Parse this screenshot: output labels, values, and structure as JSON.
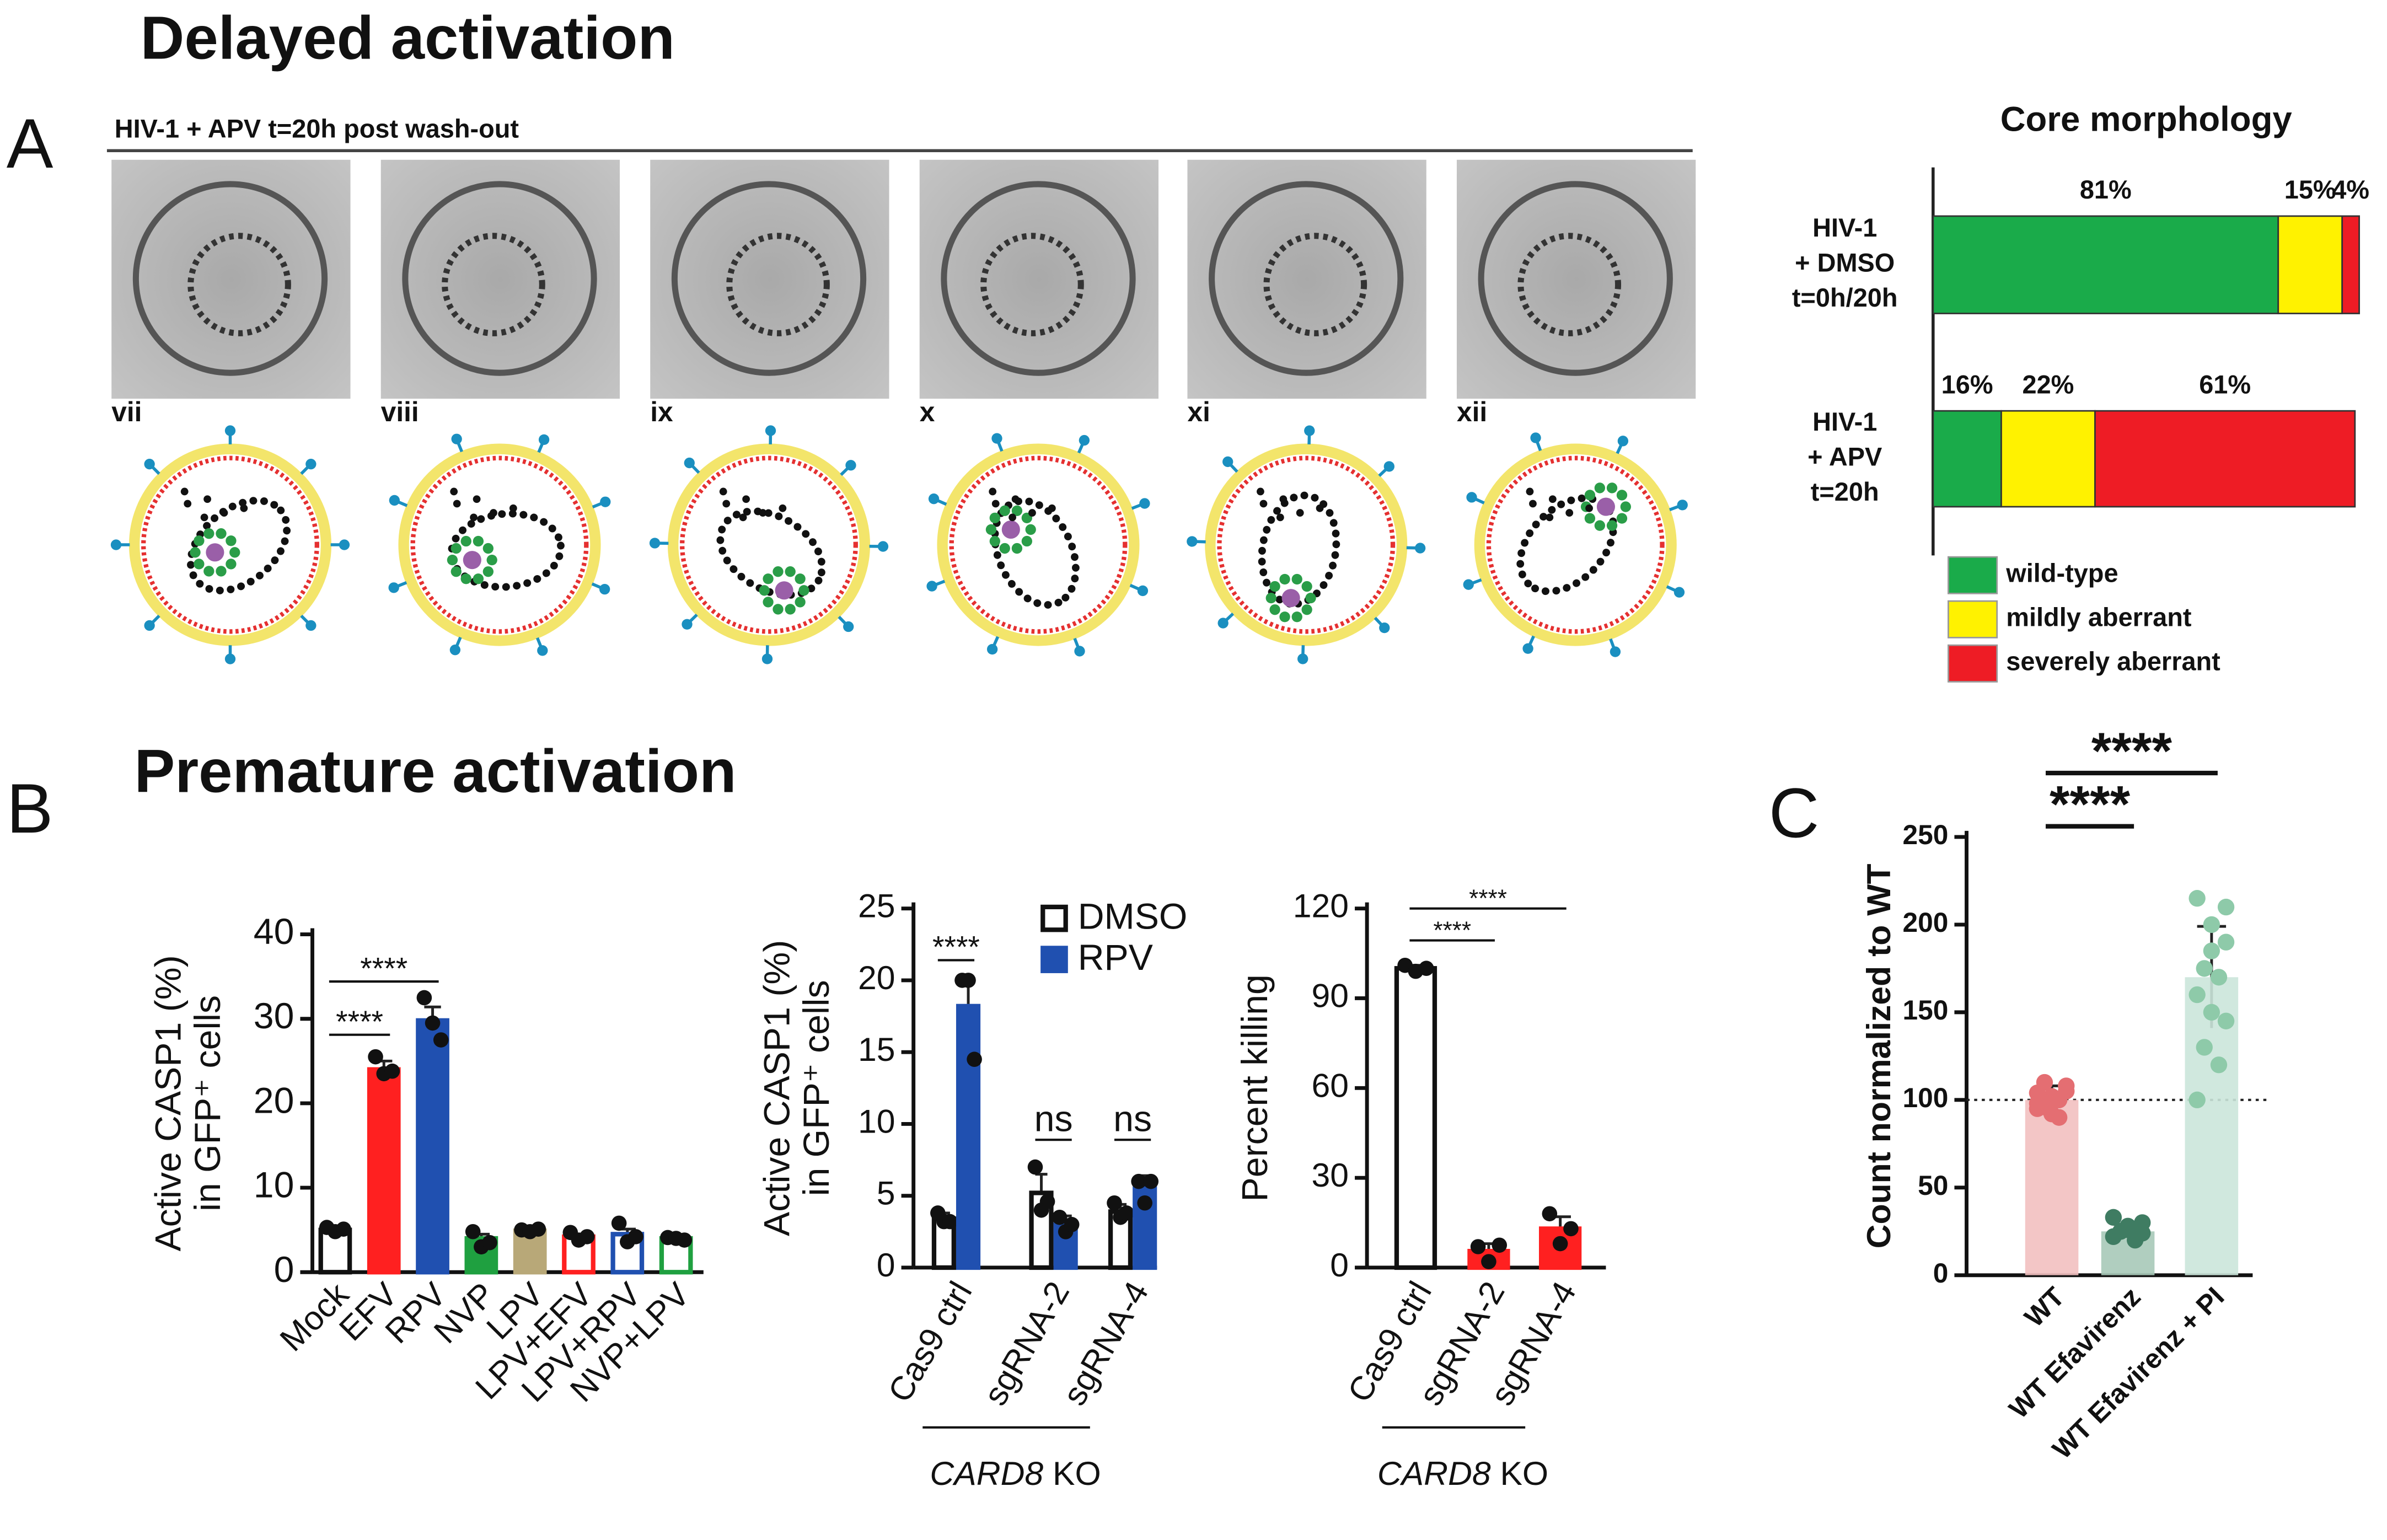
{
  "figure": {
    "headings": [
      "Delayed activation",
      "Premature activation"
    ],
    "panels": [
      "A",
      "B",
      "C"
    ]
  },
  "micrographs": {
    "header": "HIV-1 + APV t=20h post wash-out",
    "labels": [
      "vii",
      "viii",
      "ix",
      "x",
      "xi",
      "xii"
    ]
  },
  "chart_data": [
    {
      "type": "bar",
      "orientation": "horizontal",
      "stacked": true,
      "title": "Core morphology",
      "categories": [
        [
          "HIV-1",
          "+ DMSO",
          "t=0h/20h"
        ],
        [
          "HIV-1",
          "+ APV",
          "t=20h"
        ]
      ],
      "series": [
        {
          "name": "wild-type",
          "color": "#1aab4a",
          "values": [
            81,
            16
          ],
          "value_labels": [
            "81%",
            "16%"
          ]
        },
        {
          "name": "mildly aberrant",
          "color": "#fff200",
          "values": [
            15,
            22
          ],
          "value_labels": [
            "15%",
            "22%"
          ]
        },
        {
          "name": "severely aberrant",
          "color": "#ee1c25",
          "values": [
            4,
            61
          ],
          "value_labels": [
            "4%",
            "61%"
          ]
        }
      ],
      "xlim": [
        0,
        100
      ],
      "legend": "bottom"
    },
    {
      "type": "bar",
      "ylabel": [
        "Active CASP1 (%)",
        "in GFP⁺ cells"
      ],
      "categories": [
        "Mock",
        "EFV",
        "RPV",
        "NVP",
        "LPV",
        "LPV+EFV",
        "LPV+RPV",
        "NVP+LPV"
      ],
      "values": [
        5,
        24,
        29.8,
        4,
        4.9,
        4.2,
        4.5,
        4
      ],
      "errors": [
        0.3,
        1,
        1.6,
        0.5,
        0.1,
        0.3,
        0.6,
        0.1
      ],
      "points": [
        [
          5.3,
          4.8,
          5.1
        ],
        [
          25.5,
          23.5,
          23.8
        ],
        [
          32.5,
          29.5,
          27.5
        ],
        [
          4.8,
          3,
          3.5
        ],
        [
          5,
          4.8,
          5.1
        ],
        [
          4.7,
          3.8,
          4.2
        ],
        [
          5.8,
          3.6,
          4.2
        ],
        [
          4.1,
          4,
          3.8
        ]
      ],
      "colors": [
        "#ffffff",
        "#ff2020",
        "#2050b0",
        "#1fa040",
        "#b8a878",
        "#ffffff",
        "#ffffff",
        "#ffffff"
      ],
      "edgecolors": [
        "#111111",
        "#ff2020",
        "#2050b0",
        "#1fa040",
        "#b8a878",
        "#ff2020",
        "#2050b0",
        "#1fa040"
      ],
      "point_color": "#111111",
      "ylim": [
        0,
        40
      ],
      "yticks": [
        0,
        10,
        20,
        30,
        40
      ],
      "annotations": [
        {
          "text": "****",
          "between": [
            "Mock",
            "EFV"
          ]
        },
        {
          "text": "****",
          "between": [
            "Mock",
            "RPV"
          ]
        }
      ]
    },
    {
      "type": "bar",
      "ylabel": [
        "Active CASP1 (%)",
        "in GFP⁺ cells"
      ],
      "categories": [
        "Cas9 ctrl",
        "sgRNA-2",
        "sgRNA-4"
      ],
      "group_label": "CARD8 KO",
      "series": [
        {
          "name": "DMSO",
          "color": "#ffffff",
          "edgecolor": "#111111",
          "values": [
            3.4,
            5.2,
            3.9
          ],
          "errors": [
            0.4,
            1.3,
            0.5
          ],
          "points": [
            [
              3.8,
              3.2,
              3.2
            ],
            [
              7,
              4,
              4.6
            ],
            [
              4.5,
              3.5,
              3.8
            ]
          ]
        },
        {
          "name": "RPV",
          "color": "#2050b0",
          "edgecolor": "#2050b0",
          "values": [
            18.2,
            3,
            5.5
          ],
          "errors": [
            1.9,
            0.6,
            0.9
          ],
          "points": [
            [
              20,
              20,
              14.5
            ],
            [
              3.5,
              2.5,
              3
            ],
            [
              6,
              4.5,
              6
            ]
          ]
        }
      ],
      "point_color": "#111111",
      "legend": "top-right",
      "ylim": [
        0,
        25
      ],
      "yticks": [
        0,
        5,
        10,
        15,
        20,
        25
      ],
      "annotations": [
        {
          "text": "****",
          "category": "Cas9 ctrl"
        },
        {
          "text": "ns",
          "category": "sgRNA-2"
        },
        {
          "text": "ns",
          "category": "sgRNA-4"
        }
      ]
    },
    {
      "type": "bar",
      "ylabel": [
        "Percent killing"
      ],
      "categories": [
        "Cas9 ctrl",
        "sgRNA-2",
        "sgRNA-4"
      ],
      "group_label": "CARD8 KO",
      "values": [
        100,
        5.5,
        13
      ],
      "errors": [
        1,
        2.5,
        4
      ],
      "points": [
        [
          101,
          99,
          100
        ],
        [
          7,
          2,
          7.5
        ],
        [
          18,
          8,
          13
        ]
      ],
      "colors": [
        "#ffffff",
        "#ff2020",
        "#ff2020"
      ],
      "edgecolors": [
        "#111111",
        "#ff2020",
        "#ff2020"
      ],
      "point_color": "#111111",
      "ylim": [
        0,
        120
      ],
      "yticks": [
        0,
        30,
        60,
        90,
        120
      ],
      "annotations": [
        {
          "text": "****",
          "between": [
            "Cas9 ctrl",
            "sgRNA-2"
          ]
        },
        {
          "text": "****",
          "between": [
            "Cas9 ctrl",
            "sgRNA-4"
          ]
        }
      ]
    },
    {
      "type": "bar",
      "ylabel": [
        "Count normalized to WT"
      ],
      "categories": [
        "WT",
        "WT Efavirenz",
        "WT Efavirenz + PI"
      ],
      "values": [
        100,
        25,
        170
      ],
      "errors": [
        8,
        4,
        29
      ],
      "points": [
        [
          95,
          100,
          105,
          110,
          90,
          98,
          102,
          108,
          96,
          100,
          104,
          92
        ],
        [
          22,
          28,
          30,
          25,
          20,
          33,
          26,
          24
        ],
        [
          215,
          200,
          190,
          175,
          170,
          160,
          150,
          145,
          130,
          120,
          100,
          185,
          210
        ]
      ],
      "colors": [
        "#f2c0c0",
        "#a7c9b8",
        "#cbe6da"
      ],
      "point_colors": [
        "#e46e72",
        "#3f7c62",
        "#8ecaa9"
      ],
      "ylim": [
        0,
        250
      ],
      "yticks": [
        0,
        50,
        100,
        150,
        200,
        250
      ],
      "hline": 100,
      "annotations": [
        {
          "text": "****",
          "between": [
            "WT",
            "WT Efavirenz"
          ]
        },
        {
          "text": "****",
          "between": [
            "WT",
            "WT Efavirenz + PI"
          ]
        }
      ]
    }
  ]
}
